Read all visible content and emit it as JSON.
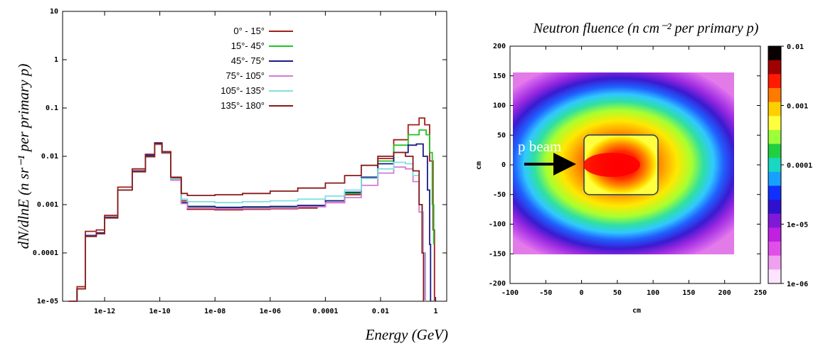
{
  "chart_data": [
    {
      "type": "line",
      "xlabel": "Energy (GeV)",
      "ylabel": "dN/dlnE (n sr⁻¹ per primary p)",
      "xscale": "log",
      "yscale": "log",
      "xlim": [
        3e-14,
        2.5
      ],
      "ylim": [
        1e-05,
        10
      ],
      "x_tick_labels": [
        "1e-12",
        "1e-10",
        "1e-08",
        "1e-06",
        "0.0001",
        "0.01",
        "1"
      ],
      "y_tick_labels": [
        "10",
        "1",
        "0.1",
        "0.01",
        "0.001",
        "0.0001",
        "1e-05"
      ],
      "legend_position": "top-center",
      "series": [
        {
          "name": "0° - 15°",
          "color": "#a0201c",
          "points": [
            [
              5e-14,
              1e-05
            ],
            [
              1e-13,
              2e-05
            ],
            [
              2e-13,
              0.00028
            ],
            [
              5e-13,
              0.0003
            ],
            [
              1e-12,
              0.0006
            ],
            [
              3e-12,
              0.0023
            ],
            [
              1e-11,
              0.0055
            ],
            [
              3e-11,
              0.011
            ],
            [
              6.5e-11,
              0.019
            ],
            [
              1.2e-10,
              0.0125
            ],
            [
              2.5e-10,
              0.0035
            ],
            [
              6e-10,
              0.0012
            ],
            [
              1e-09,
              0.0008
            ],
            [
              1e-08,
              0.00078
            ],
            [
              1e-07,
              0.0008
            ],
            [
              1e-06,
              0.00082
            ],
            [
              1e-05,
              0.00085
            ],
            [
              5e-05,
              0.0009
            ],
            [
              0.0001,
              0.0011
            ],
            [
              0.0005,
              0.0016
            ],
            [
              0.002,
              0.0035
            ],
            [
              0.008,
              0.009
            ],
            [
              0.03,
              0.022
            ],
            [
              0.1,
              0.045
            ],
            [
              0.25,
              0.062
            ],
            [
              0.4,
              0.045
            ],
            [
              0.6,
              0.008
            ],
            [
              0.8,
              0.0003
            ],
            [
              0.9,
              1e-05
            ]
          ]
        },
        {
          "name": "15°- 45°",
          "color": "#22c422",
          "points": [
            [
              5e-14,
              1e-05
            ],
            [
              1e-13,
              1.8e-05
            ],
            [
              2e-13,
              0.00022
            ],
            [
              5e-13,
              0.00025
            ],
            [
              1e-12,
              0.00055
            ],
            [
              3e-12,
              0.002
            ],
            [
              1e-11,
              0.005
            ],
            [
              3e-11,
              0.01
            ],
            [
              6.5e-11,
              0.018
            ],
            [
              1.2e-10,
              0.012
            ],
            [
              2.5e-10,
              0.0033
            ],
            [
              6e-10,
              0.0011
            ],
            [
              1e-09,
              0.0009
            ],
            [
              1e-08,
              0.00085
            ],
            [
              1e-07,
              0.00087
            ],
            [
              1e-06,
              0.0009
            ],
            [
              1e-05,
              0.00095
            ],
            [
              0.0001,
              0.0012
            ],
            [
              0.0005,
              0.0017
            ],
            [
              0.002,
              0.0036
            ],
            [
              0.008,
              0.008
            ],
            [
              0.03,
              0.017
            ],
            [
              0.1,
              0.028
            ],
            [
              0.25,
              0.035
            ],
            [
              0.45,
              0.028
            ],
            [
              0.6,
              0.012
            ],
            [
              0.75,
              0.001
            ],
            [
              0.85,
              0.00015
            ]
          ]
        },
        {
          "name": "45°- 75°",
          "color": "#1a1a8a",
          "points": [
            [
              5e-14,
              1e-05
            ],
            [
              1e-13,
              1.8e-05
            ],
            [
              2e-13,
              0.00023
            ],
            [
              5e-13,
              0.00026
            ],
            [
              1e-12,
              0.00055
            ],
            [
              3e-12,
              0.002
            ],
            [
              1e-11,
              0.005
            ],
            [
              3e-11,
              0.0105
            ],
            [
              6.5e-11,
              0.0185
            ],
            [
              1.2e-10,
              0.012
            ],
            [
              2.5e-10,
              0.0033
            ],
            [
              6e-10,
              0.0011
            ],
            [
              1e-09,
              0.00092
            ],
            [
              1e-08,
              0.00088
            ],
            [
              1e-07,
              0.0009
            ],
            [
              1e-06,
              0.00092
            ],
            [
              1e-05,
              0.00096
            ],
            [
              0.0001,
              0.0012
            ],
            [
              0.0005,
              0.0018
            ],
            [
              0.002,
              0.0037
            ],
            [
              0.008,
              0.007
            ],
            [
              0.03,
              0.012
            ],
            [
              0.1,
              0.017
            ],
            [
              0.2,
              0.018
            ],
            [
              0.35,
              0.01
            ],
            [
              0.5,
              0.002
            ],
            [
              0.6,
              0.00015
            ],
            [
              0.65,
              1e-05
            ]
          ]
        },
        {
          "name": "75°- 105°",
          "color": "#d47ad4",
          "points": [
            [
              5e-14,
              1e-05
            ],
            [
              1e-13,
              1.8e-05
            ],
            [
              2e-13,
              0.00022
            ],
            [
              5e-13,
              0.00025
            ],
            [
              1e-12,
              0.00053
            ],
            [
              3e-12,
              0.002
            ],
            [
              1e-11,
              0.0048
            ],
            [
              3e-11,
              0.0098
            ],
            [
              6.5e-11,
              0.0175
            ],
            [
              1.2e-10,
              0.0115
            ],
            [
              2.5e-10,
              0.0032
            ],
            [
              6e-10,
              0.00105
            ],
            [
              1e-09,
              0.00085
            ],
            [
              1e-08,
              0.00082
            ],
            [
              1e-07,
              0.00083
            ],
            [
              1e-06,
              0.00085
            ],
            [
              1e-05,
              0.0009
            ],
            [
              0.0001,
              0.0011
            ],
            [
              0.0005,
              0.0014
            ],
            [
              0.002,
              0.0025
            ],
            [
              0.008,
              0.0045
            ],
            [
              0.03,
              0.006
            ],
            [
              0.08,
              0.0055
            ],
            [
              0.15,
              0.003
            ],
            [
              0.25,
              0.0007
            ],
            [
              0.35,
              0.0001
            ],
            [
              0.42,
              1e-05
            ]
          ]
        },
        {
          "name": "105°- 135°",
          "color": "#7fe0e0",
          "points": [
            [
              5e-14,
              1e-05
            ],
            [
              1e-13,
              1.8e-05
            ],
            [
              2e-13,
              0.00022
            ],
            [
              5e-13,
              0.00025
            ],
            [
              1e-12,
              0.00053
            ],
            [
              3e-12,
              0.002
            ],
            [
              1e-11,
              0.0048
            ],
            [
              3e-11,
              0.0098
            ],
            [
              6.5e-11,
              0.0178
            ],
            [
              1.2e-10,
              0.0118
            ],
            [
              2.5e-10,
              0.0034
            ],
            [
              6e-10,
              0.0013
            ],
            [
              1e-09,
              0.00115
            ],
            [
              1e-08,
              0.0011
            ],
            [
              1e-07,
              0.00115
            ],
            [
              1e-06,
              0.0012
            ],
            [
              1e-05,
              0.0013
            ],
            [
              0.0001,
              0.0015
            ],
            [
              0.0005,
              0.002
            ],
            [
              0.002,
              0.0035
            ],
            [
              0.008,
              0.0055
            ],
            [
              0.03,
              0.0075
            ],
            [
              0.08,
              0.007
            ],
            [
              0.15,
              0.004
            ],
            [
              0.25,
              0.001
            ],
            [
              0.33,
              0.0001
            ],
            [
              0.38,
              1e-05
            ]
          ]
        },
        {
          "name": "135°- 180°",
          "color": "#8a1a1a",
          "points": [
            [
              5e-14,
              1e-05
            ],
            [
              1e-13,
              1.8e-05
            ],
            [
              2e-13,
              0.00022
            ],
            [
              5e-13,
              0.00025
            ],
            [
              1e-12,
              0.00053
            ],
            [
              3e-12,
              0.002
            ],
            [
              1e-11,
              0.0048
            ],
            [
              3e-11,
              0.0098
            ],
            [
              6.5e-11,
              0.018
            ],
            [
              1.2e-10,
              0.012
            ],
            [
              2.5e-10,
              0.0037
            ],
            [
              6e-10,
              0.0017
            ],
            [
              1e-09,
              0.00155
            ],
            [
              1e-08,
              0.0016
            ],
            [
              1e-07,
              0.0017
            ],
            [
              1e-06,
              0.0019
            ],
            [
              1e-05,
              0.0022
            ],
            [
              0.0001,
              0.0028
            ],
            [
              0.0005,
              0.004
            ],
            [
              0.002,
              0.0065
            ],
            [
              0.008,
              0.01
            ],
            [
              0.03,
              0.012
            ],
            [
              0.08,
              0.01
            ],
            [
              0.15,
              0.005
            ],
            [
              0.25,
              0.001
            ],
            [
              0.32,
              0.0001
            ],
            [
              0.36,
              1e-05
            ]
          ]
        }
      ]
    },
    {
      "type": "heatmap",
      "title": "Neutron fluence (n cm⁻² per primary p)",
      "xlabel": "cm",
      "ylabel": "cm",
      "xlim": [
        -100,
        250
      ],
      "ylim": [
        -200,
        200
      ],
      "x_tick_labels": [
        "-100",
        "-50",
        "0",
        "50",
        "100",
        "150",
        "200",
        "250"
      ],
      "y_tick_labels": [
        "200",
        "150",
        "100",
        "50",
        "0",
        "-50",
        "-100",
        "-150",
        "-200"
      ],
      "data_extent": {
        "x": [
          -100,
          210
        ],
        "y": [
          -150,
          155
        ]
      },
      "target_box": {
        "x": [
          0,
          100
        ],
        "y": [
          -50,
          50
        ]
      },
      "color_scale": "log",
      "colorbar_range": [
        1e-06,
        0.01
      ],
      "colorbar_tick_labels": [
        "0.01",
        "0.001",
        "0.0001",
        "1e-05",
        "1e-06"
      ],
      "colorbar_colors": [
        "#0a0000",
        "#a00000",
        "#ff1a00",
        "#ff7a00",
        "#ffd000",
        "#ffff40",
        "#9cff3a",
        "#20d040",
        "#18d8c0",
        "#18a0ff",
        "#1030ff",
        "#3010d0",
        "#8018d8",
        "#c020e0",
        "#e050e8",
        "#f0a0f0",
        "#fce4fc"
      ],
      "annotation": "p beam"
    }
  ]
}
